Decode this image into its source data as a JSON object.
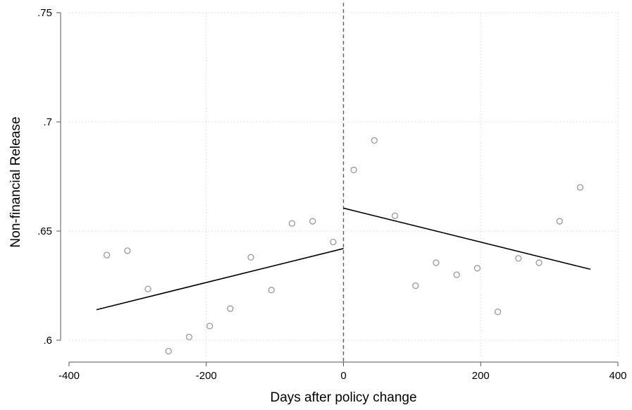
{
  "chart_data": {
    "type": "scatter",
    "xlabel": "Days after policy change",
    "ylabel": "Non-financial Release",
    "xlim": [
      -400,
      400
    ],
    "ylim": [
      0.59,
      0.75
    ],
    "x_ticks": [
      -400,
      -200,
      0,
      200,
      400
    ],
    "x_tick_labels": [
      "-400",
      "-200",
      "0",
      "200",
      "400"
    ],
    "y_ticks": [
      0.6,
      0.65,
      0.7,
      0.75
    ],
    "y_tick_labels": [
      ".6",
      ".65",
      ".7",
      ".75"
    ],
    "grid": true,
    "cutoff_x": 0,
    "colors": {
      "points": "#999999",
      "fit": "#000000",
      "cutoff": "#8c4a4a",
      "grid": "#d9d9d9"
    },
    "points": [
      {
        "x": -345,
        "y": 0.639
      },
      {
        "x": -315,
        "y": 0.641
      },
      {
        "x": -285,
        "y": 0.6235
      },
      {
        "x": -255,
        "y": 0.595
      },
      {
        "x": -225,
        "y": 0.6015
      },
      {
        "x": -195,
        "y": 0.6065
      },
      {
        "x": -165,
        "y": 0.6145
      },
      {
        "x": -135,
        "y": 0.638
      },
      {
        "x": -105,
        "y": 0.623
      },
      {
        "x": -75,
        "y": 0.6535
      },
      {
        "x": -45,
        "y": 0.6545
      },
      {
        "x": -15,
        "y": 0.645
      },
      {
        "x": 15,
        "y": 0.678
      },
      {
        "x": 45,
        "y": 0.6915
      },
      {
        "x": 75,
        "y": 0.657
      },
      {
        "x": 105,
        "y": 0.625
      },
      {
        "x": 135,
        "y": 0.6355
      },
      {
        "x": 165,
        "y": 0.63
      },
      {
        "x": 195,
        "y": 0.633
      },
      {
        "x": 225,
        "y": 0.613
      },
      {
        "x": 255,
        "y": 0.6375
      },
      {
        "x": 285,
        "y": 0.6355
      },
      {
        "x": 315,
        "y": 0.6545
      },
      {
        "x": 345,
        "y": 0.67
      }
    ],
    "fit_lines": [
      {
        "x": [
          -360,
          0
        ],
        "y": [
          0.614,
          0.642
        ]
      },
      {
        "x": [
          0,
          360
        ],
        "y": [
          0.6605,
          0.6325
        ]
      }
    ]
  }
}
